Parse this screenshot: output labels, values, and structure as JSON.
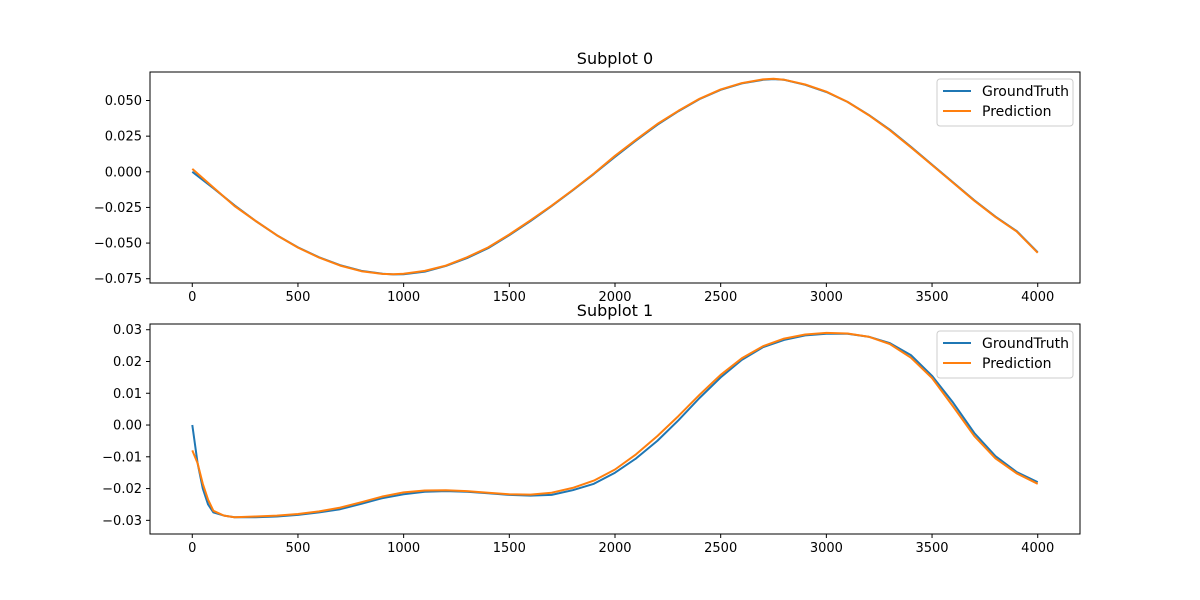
{
  "chart_data": [
    {
      "type": "line",
      "title": "Subplot 0",
      "xlabel": "",
      "ylabel": "",
      "xlim": [
        -200,
        4200
      ],
      "ylim": [
        -0.078,
        0.07
      ],
      "xticks": [
        0,
        500,
        1000,
        1500,
        2000,
        2500,
        3000,
        3500,
        4000
      ],
      "xtick_labels": [
        "0",
        "500",
        "1000",
        "1500",
        "2000",
        "2500",
        "3000",
        "3500",
        "4000"
      ],
      "yticks": [
        -0.075,
        -0.05,
        -0.025,
        0.0,
        0.025,
        0.05
      ],
      "ytick_labels": [
        "−0.075",
        "−0.050",
        "−0.025",
        "0.000",
        "0.025",
        "0.050"
      ],
      "grid": false,
      "legend": {
        "position": "top-right",
        "entries": [
          "GroundTruth",
          "Prediction"
        ]
      },
      "series": [
        {
          "name": "GroundTruth",
          "color": "#1f77b4",
          "x": [
            0,
            100,
            200,
            300,
            400,
            500,
            600,
            700,
            800,
            900,
            950,
            1000,
            1100,
            1200,
            1300,
            1400,
            1500,
            1600,
            1700,
            1800,
            1900,
            2000,
            2100,
            2200,
            2300,
            2400,
            2500,
            2600,
            2700,
            2750,
            2800,
            2900,
            3000,
            3100,
            3200,
            3300,
            3400,
            3500,
            3600,
            3700,
            3800,
            3900,
            4000
          ],
          "y": [
            0.0,
            -0.0115,
            -0.0235,
            -0.0345,
            -0.0445,
            -0.053,
            -0.06,
            -0.0655,
            -0.0695,
            -0.0715,
            -0.072,
            -0.0718,
            -0.07,
            -0.066,
            -0.0605,
            -0.0535,
            -0.0445,
            -0.0345,
            -0.024,
            -0.013,
            -0.0015,
            0.0105,
            0.022,
            0.033,
            0.0425,
            0.051,
            0.0575,
            0.062,
            0.0645,
            0.065,
            0.0645,
            0.061,
            0.056,
            0.049,
            0.04,
            0.0295,
            0.0175,
            0.005,
            -0.0075,
            -0.02,
            -0.0315,
            -0.0415,
            -0.0565
          ]
        },
        {
          "name": "Prediction",
          "color": "#ff7f0e",
          "x": [
            0,
            100,
            200,
            300,
            400,
            500,
            600,
            700,
            800,
            900,
            950,
            1000,
            1100,
            1200,
            1300,
            1400,
            1500,
            1600,
            1700,
            1800,
            1900,
            2000,
            2100,
            2200,
            2300,
            2400,
            2500,
            2600,
            2700,
            2750,
            2800,
            2900,
            3000,
            3100,
            3200,
            3300,
            3400,
            3500,
            3600,
            3700,
            3800,
            3900,
            4000
          ],
          "y": [
            0.002,
            -0.011,
            -0.024,
            -0.0345,
            -0.0445,
            -0.0532,
            -0.0602,
            -0.0658,
            -0.0697,
            -0.0716,
            -0.0718,
            -0.0715,
            -0.0695,
            -0.0658,
            -0.06,
            -0.053,
            -0.044,
            -0.034,
            -0.0238,
            -0.0128,
            -0.0012,
            0.0112,
            0.0225,
            0.0335,
            0.0428,
            0.0512,
            0.0578,
            0.0622,
            0.0648,
            0.0652,
            0.0646,
            0.0612,
            0.0562,
            0.049,
            0.0398,
            0.0292,
            0.0172,
            0.0048,
            -0.0078,
            -0.0203,
            -0.0318,
            -0.0418,
            -0.0568
          ]
        }
      ]
    },
    {
      "type": "line",
      "title": "Subplot 1",
      "xlabel": "",
      "ylabel": "",
      "xlim": [
        -200,
        4200
      ],
      "ylim": [
        -0.0343,
        0.0318
      ],
      "xticks": [
        0,
        500,
        1000,
        1500,
        2000,
        2500,
        3000,
        3500,
        4000
      ],
      "xtick_labels": [
        "0",
        "500",
        "1000",
        "1500",
        "2000",
        "2500",
        "3000",
        "3500",
        "4000"
      ],
      "yticks": [
        -0.03,
        -0.02,
        -0.01,
        0.0,
        0.01,
        0.02,
        0.03
      ],
      "ytick_labels": [
        "−0.03",
        "−0.02",
        "−0.01",
        "0.00",
        "0.01",
        "0.02",
        "0.03"
      ],
      "grid": false,
      "legend": {
        "position": "top-right",
        "entries": [
          "GroundTruth",
          "Prediction"
        ]
      },
      "series": [
        {
          "name": "GroundTruth",
          "color": "#1f77b4",
          "x": [
            0,
            25,
            50,
            75,
            100,
            150,
            200,
            300,
            400,
            500,
            600,
            700,
            800,
            900,
            1000,
            1100,
            1200,
            1300,
            1400,
            1500,
            1600,
            1700,
            1800,
            1900,
            2000,
            2100,
            2200,
            2300,
            2400,
            2500,
            2600,
            2700,
            2800,
            2900,
            3000,
            3100,
            3200,
            3300,
            3400,
            3500,
            3600,
            3700,
            3800,
            3900,
            4000
          ],
          "y": [
            0.0,
            -0.012,
            -0.02,
            -0.025,
            -0.0275,
            -0.0285,
            -0.029,
            -0.029,
            -0.0288,
            -0.0283,
            -0.0275,
            -0.0265,
            -0.0248,
            -0.023,
            -0.0218,
            -0.021,
            -0.0208,
            -0.021,
            -0.0215,
            -0.022,
            -0.0222,
            -0.022,
            -0.0205,
            -0.0185,
            -0.015,
            -0.0105,
            -0.005,
            0.0015,
            0.0085,
            0.015,
            0.0205,
            0.0245,
            0.0268,
            0.0282,
            0.0287,
            0.0287,
            0.0278,
            0.0258,
            0.022,
            0.0155,
            0.007,
            -0.0025,
            -0.0098,
            -0.0148,
            -0.018
          ]
        },
        {
          "name": "Prediction",
          "color": "#ff7f0e",
          "x": [
            0,
            25,
            50,
            75,
            100,
            150,
            200,
            300,
            400,
            500,
            600,
            700,
            800,
            900,
            1000,
            1100,
            1200,
            1300,
            1400,
            1500,
            1600,
            1700,
            1800,
            1900,
            2000,
            2100,
            2200,
            2300,
            2400,
            2500,
            2600,
            2700,
            2800,
            2900,
            3000,
            3100,
            3200,
            3300,
            3400,
            3500,
            3600,
            3700,
            3800,
            3900,
            4000
          ],
          "y": [
            -0.008,
            -0.012,
            -0.0185,
            -0.0235,
            -0.027,
            -0.0285,
            -0.029,
            -0.0288,
            -0.0285,
            -0.028,
            -0.0272,
            -0.026,
            -0.0243,
            -0.0225,
            -0.0212,
            -0.0206,
            -0.0205,
            -0.0208,
            -0.0213,
            -0.0218,
            -0.0219,
            -0.0213,
            -0.0198,
            -0.0175,
            -0.014,
            -0.0092,
            -0.0035,
            0.0028,
            0.0095,
            0.0158,
            0.021,
            0.0248,
            0.0272,
            0.0285,
            0.029,
            0.0288,
            0.0278,
            0.0255,
            0.0212,
            0.0148,
            0.0058,
            -0.0035,
            -0.0105,
            -0.0152,
            -0.0185
          ]
        }
      ]
    }
  ]
}
